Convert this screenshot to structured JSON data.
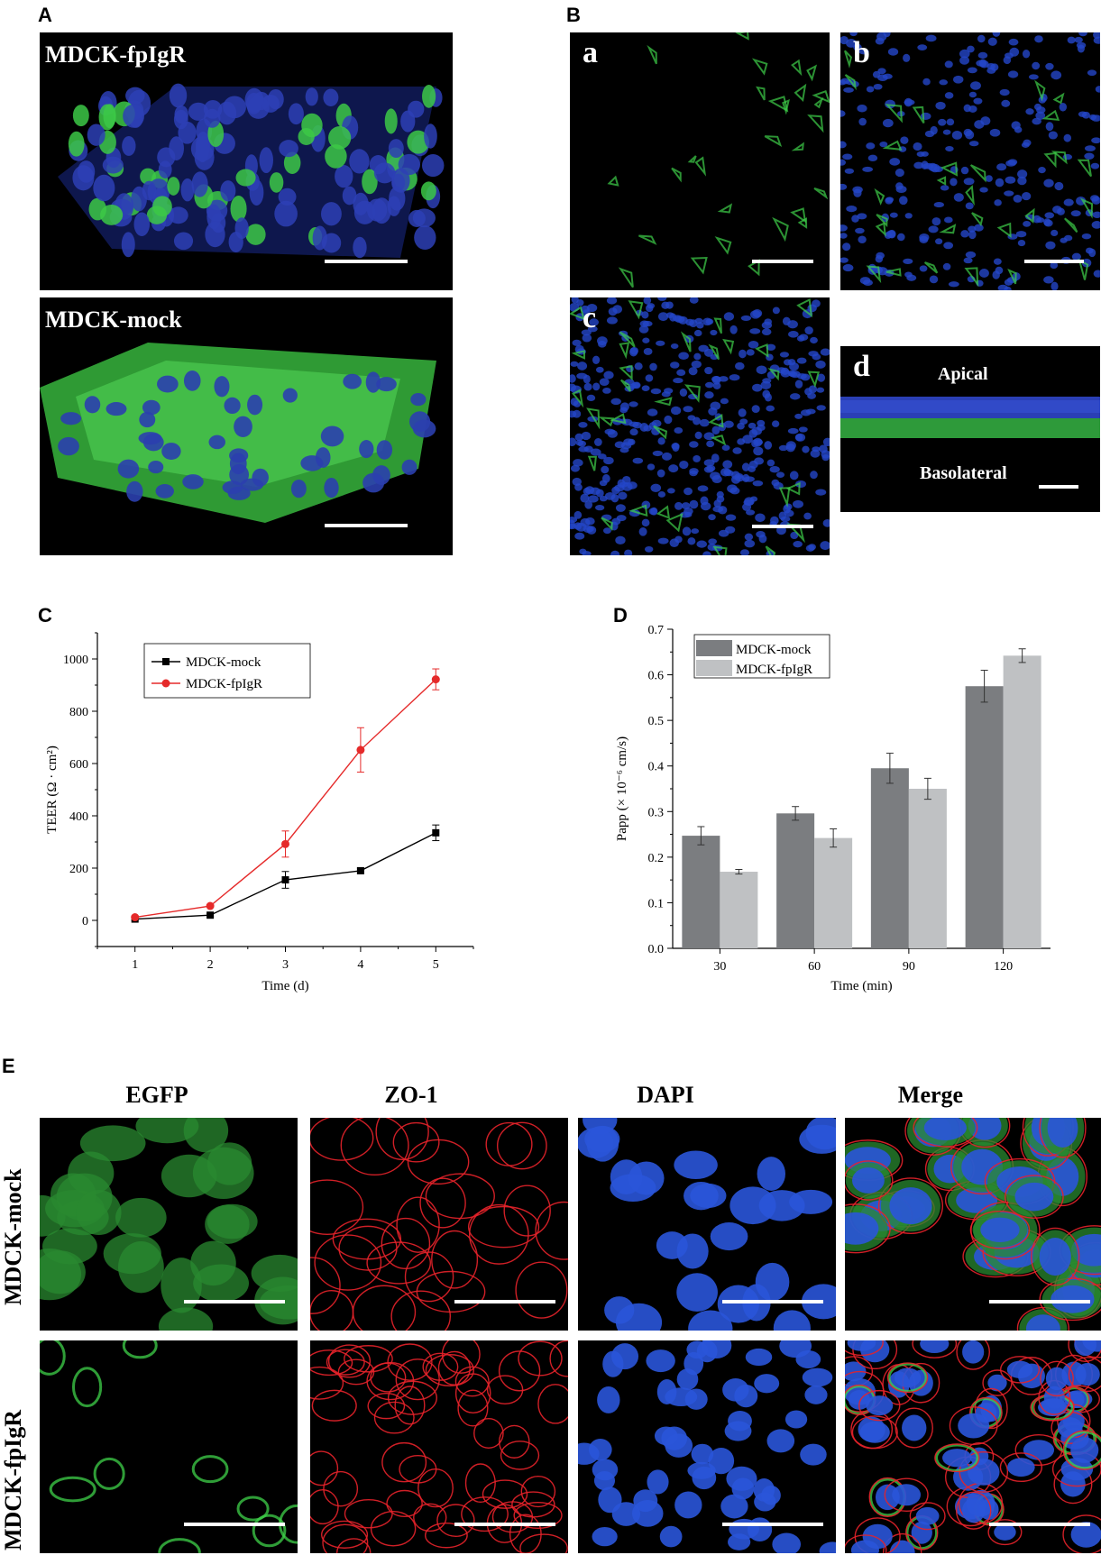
{
  "panels": {
    "A": {
      "label": "A",
      "top_title": "MDCK-fpIgR",
      "bottom_title": "MDCK-mock"
    },
    "B": {
      "label": "B",
      "sub_a": "a",
      "sub_b": "b",
      "sub_c": "c",
      "sub_d": "d",
      "apical": "Apical",
      "basolateral": "Basolateral"
    },
    "C": {
      "label": "C"
    },
    "D": {
      "label": "D"
    },
    "E": {
      "label": "E",
      "columns": [
        "EGFP",
        "ZO-1",
        "DAPI",
        "Merge"
      ],
      "rows": [
        "MDCK-mock",
        "MDCK-fpIgR"
      ]
    }
  },
  "colors": {
    "green": "#3fd24a",
    "red": "#e5222a",
    "blue": "#2a55d9",
    "mock_line": "#000000",
    "fpigr_line": "#e52a2a",
    "mock_bar": "#7b7d80",
    "fpigr_bar": "#bfc1c3"
  },
  "chart_data": [
    {
      "type": "line",
      "panel": "C",
      "xlabel": "Time (d)",
      "ylabel": "TEER (Ω · cm²)",
      "x": [
        1,
        2,
        3,
        4,
        5
      ],
      "xticks": [
        "1",
        "2",
        "3",
        "4",
        "5"
      ],
      "yticks": [
        "0",
        "200",
        "400",
        "600",
        "800",
        "1000"
      ],
      "xlim": [
        0.5,
        5.5
      ],
      "ylim": [
        -100,
        1100
      ],
      "legend_position": "top-left",
      "series": [
        {
          "name": "MDCK-mock",
          "values": [
            5,
            20,
            155,
            190,
            335
          ],
          "errors": [
            4,
            6,
            32,
            10,
            30
          ],
          "marker": "square"
        },
        {
          "name": "MDCK-fpIgR",
          "values": [
            12,
            55,
            292,
            652,
            922
          ],
          "errors": [
            4,
            5,
            50,
            85,
            40
          ],
          "marker": "circle"
        }
      ]
    },
    {
      "type": "bar",
      "panel": "D",
      "xlabel": "Time (min)",
      "ylabel": "Papp (× 10⁻⁶ cm/s)",
      "categories": [
        "30",
        "60",
        "90",
        "120"
      ],
      "yticks": [
        "0.0",
        "0.1",
        "0.2",
        "0.3",
        "0.4",
        "0.5",
        "0.6",
        "0.7"
      ],
      "ylim": [
        0,
        0.7
      ],
      "legend_position": "top-left",
      "series": [
        {
          "name": "MDCK-mock",
          "values": [
            0.247,
            0.296,
            0.395,
            0.575
          ],
          "errors": [
            0.02,
            0.015,
            0.033,
            0.035
          ]
        },
        {
          "name": "MDCK-fpIgR",
          "values": [
            0.168,
            0.242,
            0.35,
            0.642
          ],
          "errors": [
            0.005,
            0.02,
            0.023,
            0.015
          ]
        }
      ]
    }
  ]
}
